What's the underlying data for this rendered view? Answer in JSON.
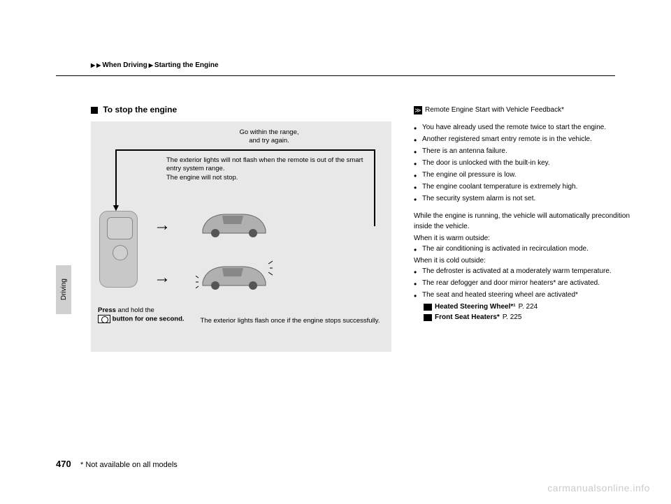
{
  "breadcrumb": {
    "level1": "When Driving",
    "level2": "Starting the Engine"
  },
  "sideTab": "Driving",
  "section": {
    "title": "To stop the engine"
  },
  "diagram": {
    "top_text": "Go within the range,\nand try again.",
    "mid_text1": "The exterior lights will not flash when the remote is out of the smart entry system range.",
    "mid_text2": "The engine will not stop.",
    "press_label1": "Press",
    "press_label2": " and hold the ",
    "press_label3": "button for one second.",
    "bottom_caption": "The exterior lights flash once if the engine stops successfully."
  },
  "right": {
    "title": "Remote Engine Start with Vehicle Feedback*",
    "bullets_top": [
      "You have already used the remote twice to start the engine.",
      "Another registered smart entry remote is in the vehicle.",
      "There is an antenna failure.",
      "The door is unlocked with the built-in key.",
      "The engine oil pressure is low.",
      "The engine coolant temperature is extremely high.",
      "The security system alarm is not set."
    ],
    "para1": "While the engine is running, the vehicle will automatically precondition inside the vehicle.",
    "warm_label": "When it is warm outside:",
    "bullets_warm": [
      "The air conditioning is activated in recirculation mode."
    ],
    "cold_label": "When it is cold outside:",
    "bullets_cold": [
      "The defroster is activated at a moderately warm temperature.",
      "The rear defogger and door mirror heaters* are activated.",
      "The seat and heated steering wheel are activated*"
    ],
    "ref1_label": "Heated Steering Wheel*¹",
    "ref1_page": "P. 224",
    "ref2_label": "Front Seat Heaters*",
    "ref2_page": "P. 225"
  },
  "pageNumber": "470",
  "footnote": "* Not available on all models",
  "watermark": "carmanualsonline.info"
}
